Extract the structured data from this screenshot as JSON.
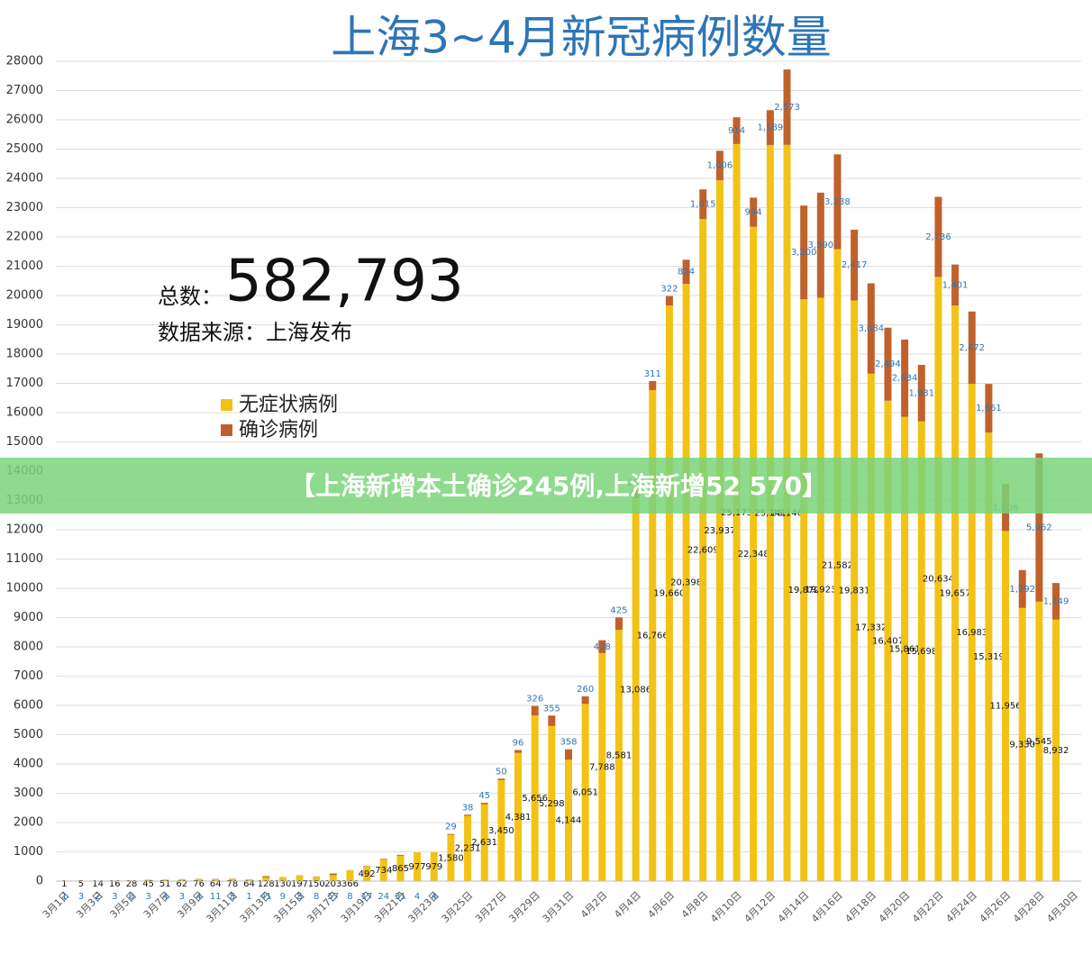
{
  "chart_data": {
    "type": "stacked_bar",
    "title": "上海3~4月新冠病例数量",
    "total_label": "总数：",
    "total": "582,793",
    "source": "数据来源：上海发布",
    "banner": "【上海新增本土确诊245例,上海新增52 570】",
    "categories": [
      "3月1日",
      null,
      "3月3日",
      null,
      "3月5日",
      null,
      "3月7日",
      null,
      "3月9日",
      null,
      "3月11日",
      null,
      "3月13日",
      null,
      "3月15日",
      null,
      "3月17日",
      null,
      "3月19日",
      null,
      "3月21日",
      null,
      "3月23日",
      null,
      "3月25日",
      null,
      "3月27日",
      null,
      "3月29日",
      null,
      "3月31日",
      null,
      "4月2日",
      null,
      "4月4日",
      null,
      "4月6日",
      null,
      "4月8日",
      null,
      "4月10日",
      null,
      "4月12日",
      null,
      "4月14日",
      null,
      "4月16日",
      null,
      "4月18日",
      null,
      "4月20日",
      null,
      "4月22日",
      null,
      "4月24日",
      null,
      "4月26日",
      null,
      "4月28日",
      null,
      "4月30日"
    ],
    "series": [
      {
        "name": "无症状病例",
        "color": "#f2c314",
        "label_color": "#111111",
        "values": [
          1,
          5,
          14,
          16,
          28,
          45,
          51,
          62,
          76,
          64,
          78,
          64,
          128,
          130,
          197,
          150,
          203,
          366,
          492,
          734,
          865,
          977,
          979,
          1580,
          2231,
          2631,
          3450,
          4381,
          5656,
          5298,
          4144,
          6051,
          7788,
          8581,
          13086,
          16766,
          19660,
          20398,
          22609,
          23937,
          25173,
          22348,
          25141,
          25146,
          19872,
          19923,
          21582,
          19831,
          17332,
          16407,
          15861,
          15698,
          20634,
          19657,
          16983,
          15319,
          11956,
          9330,
          9545,
          8932,
          null
        ],
        "value_labels": [
          "1",
          "5",
          "14",
          "16",
          "28",
          "45",
          "51",
          "62",
          "76",
          "64",
          "78",
          "64",
          "128",
          "130",
          "197",
          "150",
          "203",
          "366",
          "492",
          "734",
          "865",
          "977",
          "979",
          "1,580",
          "2,231",
          "2,631",
          "3,450",
          "4,381",
          "5,656",
          "5,298",
          "4,144",
          "6,051",
          "7,788",
          "8,581",
          "13,086",
          "16,766",
          "19,660",
          "20,398",
          "22,609",
          "23,937",
          "25,173",
          "22,348",
          "25,141",
          "25,146",
          "19,872",
          "19,923",
          "21,582",
          "19,831",
          "17,332",
          "16,407",
          "15,861",
          "15,698",
          "20,634",
          "19,657",
          "16,983",
          "15,319",
          "11,956",
          "9,330",
          "9,545",
          "8,932",
          null
        ]
      },
      {
        "name": "确诊病例",
        "color": "#c0612b",
        "label_color": "#2e75b6",
        "values": [
          1,
          3,
          2,
          3,
          0,
          3,
          4,
          3,
          4,
          11,
          5,
          1,
          41,
          9,
          5,
          8,
          57,
          8,
          17,
          24,
          31,
          4,
          4,
          29,
          38,
          45,
          50,
          96,
          326,
          355,
          358,
          260,
          438,
          425,
          268,
          311,
          322,
          824,
          1015,
          1006,
          914,
          994,
          1189,
          2573,
          3200,
          3590,
          3238,
          2417,
          3084,
          2494,
          2634,
          1931,
          2736,
          1401,
          2472,
          1661,
          1606,
          1292,
          5062,
          1249,
          null
        ],
        "value_labels": [
          "1",
          "3",
          "2",
          "3",
          "0",
          "3",
          "4",
          "3",
          "4",
          "11",
          "5",
          "1",
          "41",
          "9",
          "5",
          "8",
          "57",
          "8",
          "17",
          "24",
          "31",
          "4",
          "4",
          "29",
          "38",
          "45",
          "50",
          "96",
          "326",
          "355",
          "358",
          "260",
          "438",
          "425",
          "268",
          "311",
          "322",
          "824",
          "1,015",
          "1,006",
          "914",
          "994",
          "1,189",
          "2,573",
          "3,200",
          "3,590",
          "3,238",
          "2,417",
          "3,084",
          "2,494",
          "2,634",
          "1,931",
          "2,736",
          "1,401",
          "2,472",
          "1,661",
          "1,606",
          "1,292",
          "5,062",
          "1,249",
          null
        ]
      }
    ],
    "ylim": [
      0,
      28000
    ],
    "yticks": [
      0,
      1000,
      2000,
      3000,
      4000,
      5000,
      6000,
      7000,
      8000,
      9000,
      10000,
      11000,
      12000,
      13000,
      14000,
      15000,
      16000,
      17000,
      18000,
      19000,
      20000,
      21000,
      22000,
      23000,
      24000,
      25000,
      26000,
      27000,
      28000
    ],
    "grid": true
  }
}
